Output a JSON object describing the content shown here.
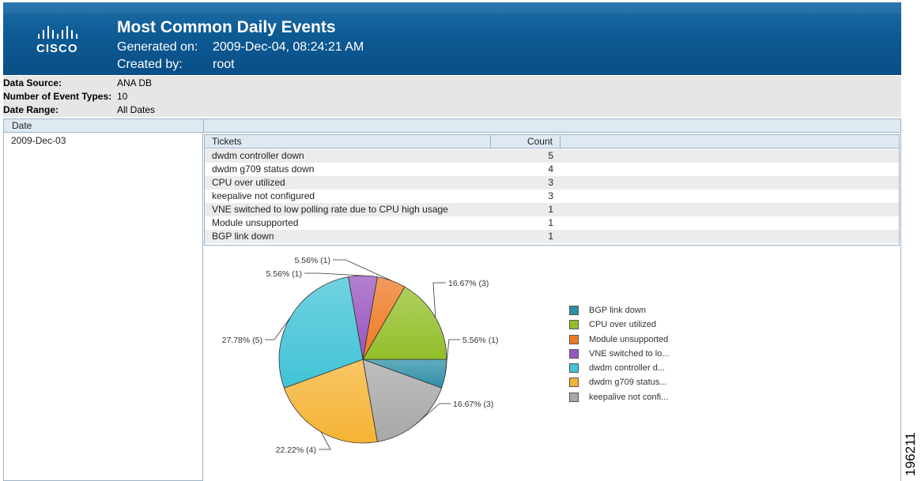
{
  "header": {
    "logo_text": "CISCO",
    "title": "Most Common Daily Events",
    "generated_label": "Generated on:",
    "generated_value": "2009-Dec-04, 08:24:21 AM",
    "created_label": "Created by:",
    "created_value": "root"
  },
  "info": [
    {
      "label": "Data Source:",
      "value": "ANA DB"
    },
    {
      "label": "Number of Event Types:",
      "value": "10"
    },
    {
      "label": "Date Range:",
      "value": "All Dates"
    }
  ],
  "date_column": {
    "header": "Date",
    "value": "2009-Dec-03"
  },
  "table": {
    "headers": [
      "Tickets",
      "Count"
    ],
    "rows": [
      {
        "ticket": "dwdm controller down",
        "count": "5"
      },
      {
        "ticket": "dwdm g709 status down",
        "count": "4"
      },
      {
        "ticket": "CPU over utilized",
        "count": "3"
      },
      {
        "ticket": "keepalive not configured",
        "count": "3"
      },
      {
        "ticket": "VNE switched to low polling rate due to CPU high usage",
        "count": "1"
      },
      {
        "ticket": "Module unsupported",
        "count": "1"
      },
      {
        "ticket": "BGP link down",
        "count": "1"
      }
    ]
  },
  "chart_data": {
    "type": "pie",
    "categories": [
      "BGP link down",
      "CPU over utilized",
      "Module unsupported",
      "VNE switched to lo...",
      "dwdm controller d...",
      "dwdm g709 status...",
      "keepalive not confi..."
    ],
    "values": [
      1,
      3,
      1,
      1,
      5,
      4,
      3
    ],
    "labels": [
      "5.56% (1)",
      "16.67% (3)",
      "5.56% (1)",
      "5.56% (1)",
      "27.78% (5)",
      "22.22% (4)",
      "16.67% (3)"
    ],
    "colors": [
      "#2e8fa8",
      "#93bf2a",
      "#ee7a25",
      "#9a55c0",
      "#41c3d6",
      "#f5b334",
      "#a8a8a8"
    ],
    "legend_position": "right"
  },
  "side_code": "196211"
}
